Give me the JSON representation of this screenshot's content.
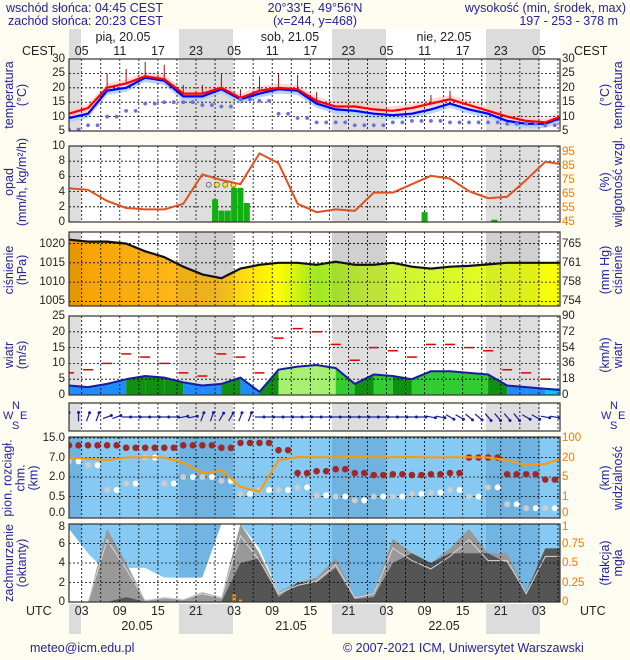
{
  "header": {
    "sunrise": "wschód słońca: 04:45 CEST",
    "sunset": "zachód słońca: 20:23 CEST",
    "coords": "20°33'E, 49°56'N",
    "grid": "(x=244,  y=468)",
    "elevation_label": "wysokość (min, środek, max)",
    "elevation_values": "197 - 253 - 378 m"
  },
  "top_axis": {
    "tz": "CEST",
    "days": [
      "pią, 20.05",
      "sob, 21.05",
      "nie, 22.05"
    ],
    "hours": [
      "05",
      "11",
      "17",
      "23",
      "05",
      "11",
      "17",
      "23",
      "05",
      "11",
      "17",
      "23",
      "05"
    ]
  },
  "bottom_axis": {
    "tz": "UTC",
    "hours": [
      "03",
      "09",
      "15",
      "21",
      "03",
      "09",
      "15",
      "21",
      "03",
      "09",
      "15",
      "21",
      "03"
    ],
    "dates": [
      "20.05",
      "21.05",
      "22.05"
    ]
  },
  "labels": {
    "temp_left": [
      "temperatura",
      "(°C)"
    ],
    "temp_right": [
      "(°C)",
      "temperatura"
    ],
    "precip_left": [
      "opad",
      "(mm/h, kg/m²/h)"
    ],
    "precip_right": [
      "(%)",
      "wilgotność wzgl."
    ],
    "press_left": [
      "ciśnienie",
      "(hPa)"
    ],
    "press_right": [
      "(mm Hg)",
      "ciśnienie"
    ],
    "wind_left": [
      "wiatr",
      "(m/s)"
    ],
    "wind_right": [
      "(km/h)",
      "wiatr"
    ],
    "cloud_left": [
      "pion. rozciągł. chm.",
      "(km)"
    ],
    "cloud_right": [
      "(km)",
      "widzialność"
    ],
    "cover_left": [
      "zachmurzenie",
      "(oktanty)"
    ],
    "cover_right": [
      "(frakcja)",
      "mgła"
    ],
    "compass": {
      "n": "N",
      "w": "W",
      "s": "S",
      "e": "E"
    }
  },
  "ticks": {
    "temp": [
      "30",
      "25",
      "20",
      "15",
      "10",
      "5"
    ],
    "precip": [
      "10",
      "8",
      "6",
      "4",
      "2",
      "0"
    ],
    "humidity": [
      "95",
      "85",
      "75",
      "65",
      "55",
      "45"
    ],
    "press": [
      "1020",
      "1015",
      "1010",
      "1005"
    ],
    "press_mmhg": [
      "765",
      "761",
      "758",
      "754"
    ],
    "wind": [
      "25",
      "20",
      "15",
      "10",
      "5",
      "0"
    ],
    "wind_kmh": [
      "90",
      "72",
      "54",
      "36",
      "18",
      "0"
    ],
    "cloud": [
      "15.0",
      "7.0",
      "2.0",
      "0.5",
      "0.0"
    ],
    "vis": [
      "100",
      "20",
      "5",
      "1",
      "0"
    ],
    "cover": [
      "8",
      "6",
      "4",
      "2",
      "0"
    ],
    "fog": [
      "1",
      "0.75",
      "0.5",
      "0.25",
      "0"
    ]
  },
  "footer": {
    "email": "meteo@icm.edu.pl",
    "copyright": "© 2007-2021 ICM, Uniwersytet Warszawski"
  },
  "colors": {
    "temp": "#ff0000",
    "temp2": "#0000ff",
    "dew": "#7070dd",
    "humidity": "#e05020",
    "gust": "#e00000",
    "rain": "#10b010",
    "vis": "#ff9900"
  },
  "chart_data": {
    "type": "line",
    "x_unit": "hours from 20.05 01 UTC",
    "step_hours": 3,
    "temperature_c": [
      11,
      13,
      20,
      21.5,
      24,
      23,
      18,
      18,
      20,
      16.5,
      19,
      20,
      19.5,
      15.5,
      13.5,
      13.5,
      12.5,
      12,
      13,
      14.5,
      16,
      14,
      12,
      10,
      8.5,
      8,
      10.5
    ],
    "temperature2_c": [
      9.5,
      11,
      19,
      20,
      23.5,
      22.5,
      17,
      17,
      19.5,
      16,
      18,
      19.5,
      19,
      14.5,
      12.5,
      12,
      11,
      10.5,
      11,
      12.5,
      14.5,
      12.5,
      11,
      8.5,
      7.5,
      7.5,
      10
    ],
    "dewpoint_c": [
      5.5,
      7,
      10,
      12,
      14.5,
      15,
      15,
      14,
      13.5,
      16,
      15.5,
      11,
      9.5,
      8,
      8,
      7,
      7,
      8,
      8.5,
      8.5,
      8,
      8,
      8,
      7.5,
      7.5,
      7,
      7
    ],
    "precip_mm_h": [
      {
        "t": 23,
        "v": 3.0
      },
      {
        "t": 24,
        "v": 1.5
      },
      {
        "t": 25,
        "v": 1.5
      },
      {
        "t": 26,
        "v": 4.5
      },
      {
        "t": 27,
        "v": 4.5
      },
      {
        "t": 28,
        "v": 2.5
      },
      {
        "t": 56,
        "v": 1.3
      },
      {
        "t": 67,
        "v": 0.3
      }
    ],
    "humidity_pct": [
      69,
      68,
      60,
      55,
      54,
      54,
      58,
      79,
      75,
      72,
      94,
      87,
      58,
      52,
      54,
      53,
      66,
      66,
      72,
      78,
      76,
      67,
      62,
      63,
      75,
      88,
      86
    ],
    "pressure_hpa": [
      1021,
      1020.5,
      1020.5,
      1020,
      1018,
      1016.5,
      1014,
      1012,
      1011,
      1013.5,
      1014.5,
      1015,
      1015,
      1014.5,
      1015.3,
      1014.5,
      1014.5,
      1015,
      1014,
      1013.5,
      1014,
      1014.2,
      1014.6,
      1015,
      1015,
      1015,
      1015
    ],
    "wind_ms": [
      3,
      2.5,
      3.5,
      5,
      6,
      5.5,
      4,
      3,
      3.5,
      5.5,
      1,
      8,
      9,
      9.5,
      8.5,
      3.5,
      6.5,
      6,
      5,
      7.5,
      7.5,
      7,
      6.5,
      3,
      2.5,
      2,
      1.5
    ],
    "gust_ms": [
      7,
      8,
      10,
      13,
      12,
      10,
      7,
      6,
      13,
      12,
      7,
      18,
      21,
      20,
      16,
      11,
      15,
      14,
      12,
      16,
      16,
      15,
      14,
      8,
      7,
      5,
      5.5
    ],
    "wind_dir_deg": [
      180,
      200,
      250,
      270,
      270,
      270,
      260,
      200,
      210,
      200,
      270,
      270,
      270,
      270,
      270,
      270,
      270,
      270,
      270,
      280,
      300,
      310,
      320,
      320,
      300,
      280,
      270
    ],
    "cloud_top_km": [
      12,
      12,
      12,
      11,
      11,
      11,
      12,
      12,
      11,
      13,
      13,
      10,
      3,
      3.5,
      4,
      3,
      2.5,
      2.7,
      2.5,
      2.7,
      3,
      7,
      7,
      2.7,
      2.7,
      1.8,
      2.3
    ],
    "cloud_base_km": [
      6,
      5,
      1,
      1.5,
      7,
      1.5,
      2,
      2,
      1.7,
      0.7,
      1,
      1,
      1.2,
      0.6,
      0.5,
      0.4,
      0.5,
      0.5,
      0.7,
      0.8,
      1,
      0.5,
      1.2,
      0.3,
      0.2,
      0.2,
      0.3
    ],
    "visibility_km": [
      20,
      19,
      18,
      20,
      21,
      20,
      16,
      8,
      10,
      3,
      2,
      18,
      22,
      21,
      21,
      22,
      21,
      21,
      22,
      20,
      21,
      21,
      20,
      18,
      14,
      15,
      20
    ],
    "cover_high_oktas": [
      7.5,
      5,
      3,
      3.5,
      3.5,
      2.5,
      2.5,
      2.5,
      8,
      8,
      5.5,
      1,
      0.5,
      0.5,
      0.5,
      0.5,
      0.5,
      0.5,
      0.5,
      0.5,
      0.5,
      0.5,
      0.5,
      0.2,
      0.2,
      0.2,
      0.2
    ],
    "cover_mid_oktas": [
      0,
      0,
      7.5,
      4,
      0.2,
      0.5,
      0.3,
      1,
      0.5,
      8,
      5,
      1,
      2,
      2.5,
      4.5,
      0.5,
      1,
      6.5,
      5,
      4,
      5.5,
      7.5,
      5,
      5,
      1,
      5.5,
      5.5
    ],
    "cover_low_oktas": [
      0,
      0,
      0,
      0.5,
      0,
      0,
      0,
      0,
      0,
      4,
      4.5,
      0.5,
      2,
      2,
      3.5,
      0.3,
      0.5,
      4,
      5,
      4,
      5,
      5,
      5,
      4,
      1,
      5.5,
      5.5
    ],
    "fog_fraction": [
      {
        "t": 26,
        "v": 0.1
      },
      {
        "t": 27,
        "v": 0.03
      }
    ]
  }
}
